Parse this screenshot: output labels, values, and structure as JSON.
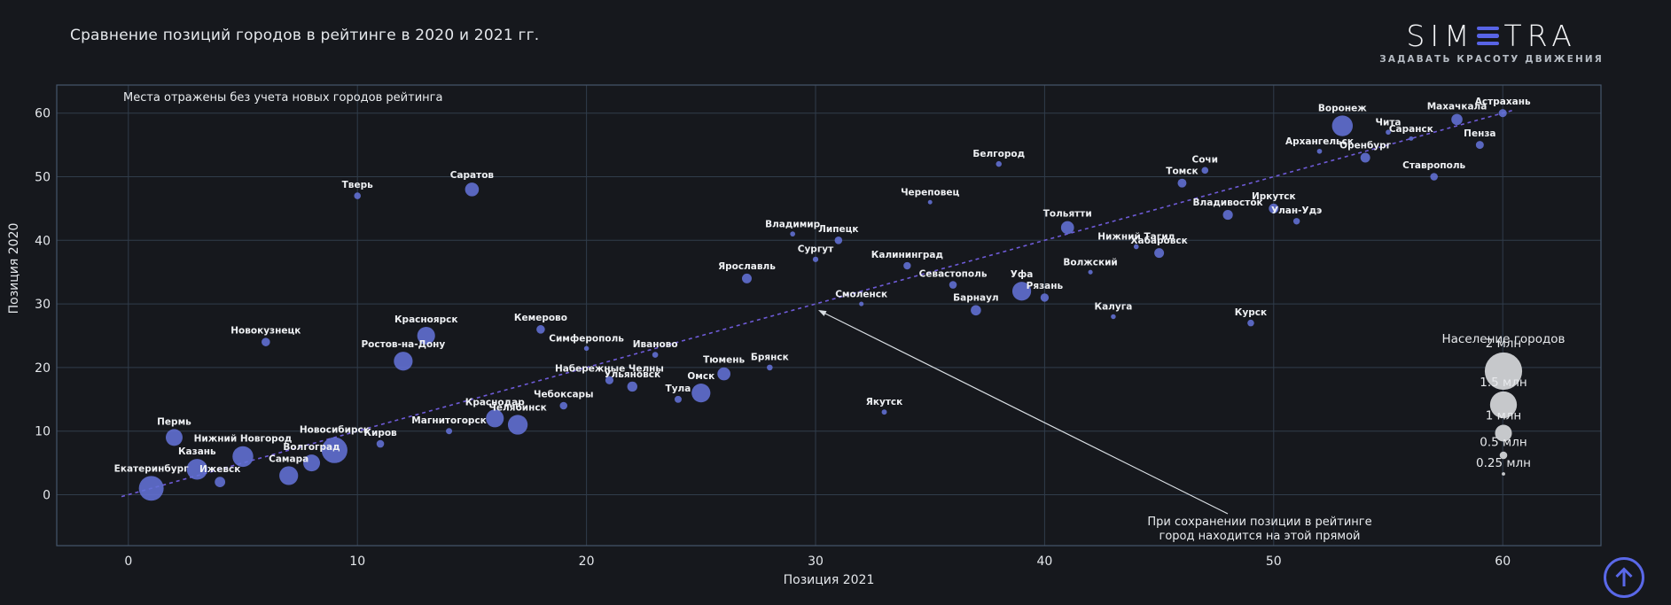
{
  "title": "Сравнение позиций городов в рейтинге в 2020 и 2021 гг.",
  "logo": {
    "text_left": "SIM",
    "text_right": "TRA",
    "tagline": "ЗАДАВАТЬ КРАСОТУ ДВИЖЕНИЯ",
    "accent_color": "#5864e6"
  },
  "notes": {
    "top_left": "Места отражены без учета новых городов рейтинга",
    "identity_line_1": "При сохранении позиции в рейтинге",
    "identity_line_2": "город находится на этой прямой"
  },
  "legend": {
    "title": "Население городов",
    "entries": [
      {
        "label": "2 млн",
        "pop": 2
      },
      {
        "label": "1.5 млн",
        "pop": 1.5
      },
      {
        "label": "1 млн",
        "pop": 1
      },
      {
        "label": "0.5 млн",
        "pop": 0.5
      },
      {
        "label": "0.25 млн",
        "pop": 0.25
      }
    ],
    "circle_color": "#c6c8cb"
  },
  "scroll_button": {
    "icon": "up-arrow",
    "color": "#5a68e8"
  },
  "chart_data": {
    "type": "scatter",
    "title": "Сравнение позиций городов в рейтинге в 2020 и 2021 гг.",
    "xlabel": "Позиция 2021",
    "ylabel": "Позиция 2020",
    "x_ticks": [
      0,
      10,
      20,
      30,
      40,
      50,
      60
    ],
    "y_ticks": [
      0,
      10,
      20,
      30,
      40,
      50,
      60
    ],
    "xlim": [
      -3.1,
      64.3
    ],
    "ylim": [
      -8.0,
      64.4
    ],
    "grid": true,
    "identity_line": true,
    "size_by": "Население городов, млн",
    "bubble_color": "#6371d6",
    "identity_line_color": "#6e5bd8",
    "points": [
      {
        "city": "Екатеринбург",
        "x": 1,
        "y": 1,
        "pop": 1.4
      },
      {
        "city": "Пермь",
        "x": 2,
        "y": 9,
        "pop": 1.0
      },
      {
        "city": "Казань",
        "x": 3,
        "y": 4,
        "pop": 1.2
      },
      {
        "city": "Ижевск",
        "x": 4,
        "y": 2,
        "pop": 0.66
      },
      {
        "city": "Нижний Новгород",
        "x": 5,
        "y": 6,
        "pop": 1.2
      },
      {
        "city": "Новокузнецк",
        "x": 6,
        "y": 24,
        "pop": 0.55
      },
      {
        "city": "Самара",
        "x": 7,
        "y": 3,
        "pop": 1.1
      },
      {
        "city": "Волгоград",
        "x": 8,
        "y": 5,
        "pop": 1.0
      },
      {
        "city": "Новосибирск",
        "x": 9,
        "y": 7,
        "pop": 1.45
      },
      {
        "city": "Тверь",
        "x": 10,
        "y": 47,
        "pop": 0.45
      },
      {
        "city": "Киров",
        "x": 11,
        "y": 8,
        "pop": 0.5
      },
      {
        "city": "Ростов-на-Дону",
        "x": 12,
        "y": 21,
        "pop": 1.1
      },
      {
        "city": "Красноярск",
        "x": 13,
        "y": 25,
        "pop": 1.05
      },
      {
        "city": "Магнитогорск",
        "x": 14,
        "y": 10,
        "pop": 0.42
      },
      {
        "city": "Саратов",
        "x": 15,
        "y": 48,
        "pop": 0.84
      },
      {
        "city": "Краснодар",
        "x": 16,
        "y": 12,
        "pop": 1.05
      },
      {
        "city": "Челябинск",
        "x": 17,
        "y": 11,
        "pop": 1.15
      },
      {
        "city": "Кемерово",
        "x": 18,
        "y": 26,
        "pop": 0.55
      },
      {
        "city": "Чебоксары",
        "x": 19,
        "y": 14,
        "pop": 0.5
      },
      {
        "city": "Симферополь",
        "x": 20,
        "y": 23,
        "pop": 0.34
      },
      {
        "city": "Набережные Челны",
        "x": 21,
        "y": 18,
        "pop": 0.53
      },
      {
        "city": "Ульяновск",
        "x": 22,
        "y": 17,
        "pop": 0.64
      },
      {
        "city": "Иваново",
        "x": 23,
        "y": 22,
        "pop": 0.4
      },
      {
        "city": "Тула",
        "x": 24,
        "y": 15,
        "pop": 0.47
      },
      {
        "city": "Омск",
        "x": 25,
        "y": 16,
        "pop": 1.1
      },
      {
        "city": "Тюмень",
        "x": 26,
        "y": 19,
        "pop": 0.8
      },
      {
        "city": "Ярославль",
        "x": 27,
        "y": 34,
        "pop": 0.62
      },
      {
        "city": "Брянск",
        "x": 28,
        "y": 20,
        "pop": 0.4
      },
      {
        "city": "Владимир",
        "x": 29,
        "y": 41,
        "pop": 0.35
      },
      {
        "city": "Сургут",
        "x": 30,
        "y": 37,
        "pop": 0.38
      },
      {
        "city": "Липецк",
        "x": 31,
        "y": 40,
        "pop": 0.5
      },
      {
        "city": "Смоленск",
        "x": 32,
        "y": 30,
        "pop": 0.32
      },
      {
        "city": "Якутск",
        "x": 33,
        "y": 13,
        "pop": 0.36
      },
      {
        "city": "Калининград",
        "x": 34,
        "y": 36,
        "pop": 0.49
      },
      {
        "city": "Череповец",
        "x": 35,
        "y": 46,
        "pop": 0.31
      },
      {
        "city": "Севастополь",
        "x": 36,
        "y": 33,
        "pop": 0.5
      },
      {
        "city": "Барнаул",
        "x": 37,
        "y": 29,
        "pop": 0.65
      },
      {
        "city": "Белгород",
        "x": 38,
        "y": 52,
        "pop": 0.39
      },
      {
        "city": "Уфа",
        "x": 39,
        "y": 32,
        "pop": 1.1
      },
      {
        "city": "Рязань",
        "x": 40,
        "y": 31,
        "pop": 0.54
      },
      {
        "city": "Тольятти",
        "x": 41,
        "y": 42,
        "pop": 0.8
      },
      {
        "city": "Волжский",
        "x": 42,
        "y": 35,
        "pop": 0.32
      },
      {
        "city": "Калуга",
        "x": 43,
        "y": 28,
        "pop": 0.34
      },
      {
        "city": "Нижний Тагил",
        "x": 44,
        "y": 39,
        "pop": 0.35
      },
      {
        "city": "Хабаровск",
        "x": 45,
        "y": 38,
        "pop": 0.62
      },
      {
        "city": "Томск",
        "x": 46,
        "y": 49,
        "pop": 0.57
      },
      {
        "city": "Сочи",
        "x": 47,
        "y": 51,
        "pop": 0.45
      },
      {
        "city": "Владивосток",
        "x": 48,
        "y": 44,
        "pop": 0.63
      },
      {
        "city": "Курск",
        "x": 49,
        "y": 27,
        "pop": 0.45
      },
      {
        "city": "Иркутск",
        "x": 50,
        "y": 45,
        "pop": 0.62
      },
      {
        "city": "Улан-Удэ",
        "x": 51,
        "y": 43,
        "pop": 0.44
      },
      {
        "city": "Архангельск",
        "x": 52,
        "y": 54,
        "pop": 0.35
      },
      {
        "city": "Воронеж",
        "x": 53,
        "y": 58,
        "pop": 1.2
      },
      {
        "city": "Оренбург",
        "x": 54,
        "y": 53,
        "pop": 0.62
      },
      {
        "city": "Чита",
        "x": 55,
        "y": 57,
        "pop": 0.35
      },
      {
        "city": "Саранск",
        "x": 56,
        "y": 56,
        "pop": 0.31
      },
      {
        "city": "Ставрополь",
        "x": 57,
        "y": 50,
        "pop": 0.5
      },
      {
        "city": "Махачкала",
        "x": 58,
        "y": 59,
        "pop": 0.7
      },
      {
        "city": "Пенза",
        "x": 59,
        "y": 55,
        "pop": 0.52
      },
      {
        "city": "Астрахань",
        "x": 60,
        "y": 60,
        "pop": 0.53
      }
    ]
  }
}
